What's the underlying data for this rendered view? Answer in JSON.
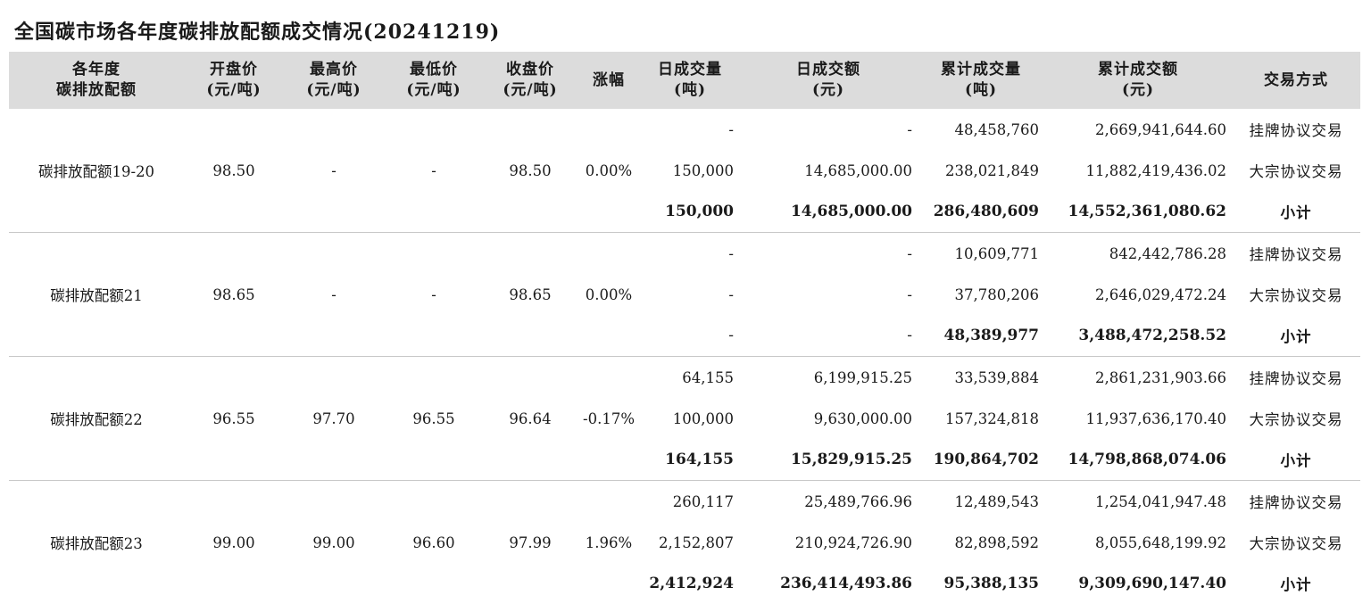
{
  "title": "全国碳市场各年度碳排放配额成交情况(20241219)",
  "headers": [
    "各年度\n碳排放配额",
    "开盘价\n(元/吨)",
    "最高价\n(元/吨)",
    "最低价\n(元/吨)",
    "收盘价\n(元/吨)",
    "涨幅",
    "日成交量\n(吨)",
    "日成交额\n(元)",
    "累计成交量\n(吨)",
    "累计成交额\n(元)",
    "交易方式"
  ],
  "groups": [
    {
      "name": "碳排放配额19-20",
      "open": "98.50",
      "high": "-",
      "low": "-",
      "close": "98.50",
      "change": "0.00%",
      "rows": [
        {
          "vol": "-",
          "amt": "-",
          "cum_vol": "48,458,760",
          "cum_amt": "2,669,941,644.60",
          "type": "挂牌协议交易"
        },
        {
          "vol": "150,000",
          "amt": "14,685,000.00",
          "cum_vol": "238,021,849",
          "cum_amt": "11,882,419,436.02",
          "type": "大宗协议交易"
        }
      ],
      "subtotal": {
        "vol": "150,000",
        "amt": "14,685,000.00",
        "cum_vol": "286,480,609",
        "cum_amt": "14,552,361,080.62",
        "type": "小计"
      }
    },
    {
      "name": "碳排放配额21",
      "open": "98.65",
      "high": "-",
      "low": "-",
      "close": "98.65",
      "change": "0.00%",
      "rows": [
        {
          "vol": "-",
          "amt": "-",
          "cum_vol": "10,609,771",
          "cum_amt": "842,442,786.28",
          "type": "挂牌协议交易"
        },
        {
          "vol": "-",
          "amt": "-",
          "cum_vol": "37,780,206",
          "cum_amt": "2,646,029,472.24",
          "type": "大宗协议交易"
        }
      ],
      "subtotal": {
        "vol": "-",
        "amt": "-",
        "cum_vol": "48,389,977",
        "cum_amt": "3,488,472,258.52",
        "type": "小计"
      }
    },
    {
      "name": "碳排放配额22",
      "open": "96.55",
      "high": "97.70",
      "low": "96.55",
      "close": "96.64",
      "change": "-0.17%",
      "rows": [
        {
          "vol": "64,155",
          "amt": "6,199,915.25",
          "cum_vol": "33,539,884",
          "cum_amt": "2,861,231,903.66",
          "type": "挂牌协议交易"
        },
        {
          "vol": "100,000",
          "amt": "9,630,000.00",
          "cum_vol": "157,324,818",
          "cum_amt": "11,937,636,170.40",
          "type": "大宗协议交易"
        }
      ],
      "subtotal": {
        "vol": "164,155",
        "amt": "15,829,915.25",
        "cum_vol": "190,864,702",
        "cum_amt": "14,798,868,074.06",
        "type": "小计"
      }
    },
    {
      "name": "碳排放配额23",
      "open": "99.00",
      "high": "99.00",
      "low": "96.60",
      "close": "97.99",
      "change": "1.96%",
      "rows": [
        {
          "vol": "260,117",
          "amt": "25,489,766.96",
          "cum_vol": "12,489,543",
          "cum_amt": "1,254,041,947.48",
          "type": "挂牌协议交易"
        },
        {
          "vol": "2,152,807",
          "amt": "210,924,726.90",
          "cum_vol": "82,898,592",
          "cum_amt": "8,055,648,199.92",
          "type": "大宗协议交易"
        }
      ],
      "subtotal": {
        "vol": "2,412,924",
        "amt": "236,414,493.86",
        "cum_vol": "95,388,135",
        "cum_amt": "9,309,690,147.40",
        "type": "小计"
      }
    }
  ]
}
